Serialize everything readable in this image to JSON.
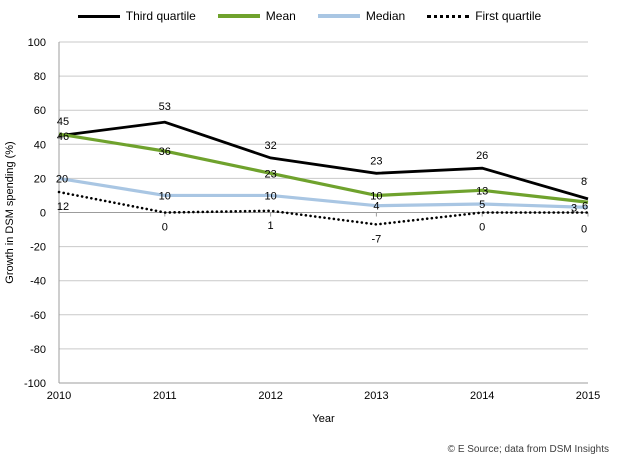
{
  "chart_data": {
    "type": "line",
    "title": "",
    "xlabel": "Year",
    "ylabel": "Growth in DSM spending (%)",
    "ylim": [
      -100,
      100
    ],
    "ytick_step": 20,
    "grid": true,
    "legend_position": "top",
    "categories": [
      "2010",
      "2011",
      "2012",
      "2013",
      "2014",
      "2015"
    ],
    "series": [
      {
        "name": "Third quartile",
        "color": "#000000",
        "style": "solid",
        "label_position": "above",
        "values": [
          45,
          53,
          32,
          23,
          26,
          8
        ]
      },
      {
        "name": "Mean",
        "color": "#6FA22D",
        "style": "solid",
        "label_position": "center",
        "values": [
          46,
          36,
          23,
          10,
          13,
          6
        ]
      },
      {
        "name": "Median",
        "color": "#A9C6E3",
        "style": "solid",
        "label_position": "center",
        "values": [
          20,
          10,
          10,
          4,
          5,
          3
        ]
      },
      {
        "name": "First quartile",
        "color": "#000000",
        "style": "dotted",
        "label_position": "below",
        "values": [
          12,
          0,
          1,
          -7,
          0,
          0
        ]
      }
    ],
    "source": "© E Source; data from DSM Insights",
    "colors": {
      "grid": "#C9C9C9",
      "axis": "#9C9C9C",
      "label_text": "#000000",
      "source_text": "#3D3D3D"
    }
  }
}
